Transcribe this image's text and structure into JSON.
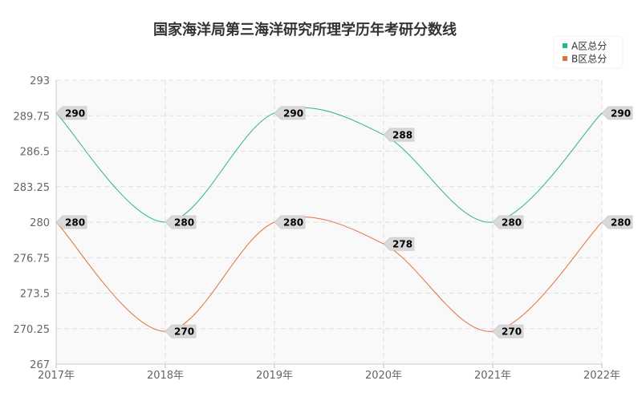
{
  "chart_data": {
    "type": "line",
    "title": "国家海洋局第三海洋研究所理学历年考研分数线",
    "x": [
      "2017年",
      "2018年",
      "2019年",
      "2020年",
      "2021年",
      "2022年"
    ],
    "ylim": [
      267,
      293
    ],
    "yticks": [
      "293",
      "289.75",
      "286.5",
      "283.25",
      "280",
      "276.75",
      "273.5",
      "270.25",
      "267"
    ],
    "grid": true,
    "legend_position": "top-right",
    "series": [
      {
        "name": "A区总分",
        "color": "#2bb38b",
        "values": [
          290,
          280,
          290,
          288,
          280,
          290
        ]
      },
      {
        "name": "B区总分",
        "color": "#e0703c",
        "values": [
          280,
          270,
          280,
          278,
          270,
          280
        ]
      }
    ]
  }
}
